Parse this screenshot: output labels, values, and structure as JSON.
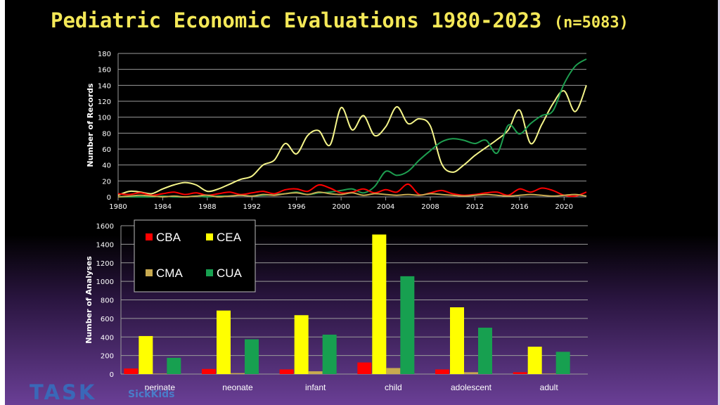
{
  "title": "Pediatric Economic Evaluations 1980-2023",
  "title_n": "(n=5083)",
  "logo_text": "TASK",
  "logo_sub": "SickKids",
  "colors": {
    "CBA": "#ff0000",
    "CEA": "#ffff00",
    "CMA": "#c8aa50",
    "CUA": "#17a050"
  },
  "chart_data": [
    {
      "type": "line",
      "xlabel": "",
      "ylabel": "Number of Records",
      "ylim": [
        0,
        180
      ],
      "yticks": [
        0,
        20,
        40,
        60,
        80,
        100,
        120,
        140,
        160,
        180
      ],
      "xlim": [
        1980,
        2022
      ],
      "xticks": [
        1980,
        1984,
        1988,
        1992,
        1996,
        2000,
        2004,
        2008,
        2012,
        2016,
        2020
      ],
      "grid": true,
      "series": [
        {
          "name": "CEA",
          "color": "#f5f58a",
          "x": [
            1980,
            1981,
            1982,
            1983,
            1984,
            1985,
            1986,
            1987,
            1988,
            1989,
            1990,
            1991,
            1992,
            1993,
            1994,
            1995,
            1996,
            1997,
            1998,
            1999,
            2000,
            2001,
            2002,
            2003,
            2004,
            2005,
            2006,
            2007,
            2008,
            2009,
            2010,
            2011,
            2012,
            2013,
            2014,
            2015,
            2016,
            2017,
            2018,
            2019,
            2020,
            2021,
            2022
          ],
          "y": [
            2,
            7,
            6,
            4,
            10,
            15,
            18,
            15,
            7,
            10,
            16,
            22,
            26,
            40,
            46,
            67,
            54,
            77,
            83,
            65,
            112,
            84,
            102,
            77,
            88,
            113,
            92,
            98,
            89,
            42,
            31,
            40,
            52,
            62,
            72,
            84,
            109,
            67,
            91,
            117,
            133,
            107,
            140
          ]
        },
        {
          "name": "CUA",
          "color": "#1e9e50",
          "x": [
            1980,
            1981,
            1982,
            1983,
            1984,
            1985,
            1986,
            1987,
            1988,
            1989,
            1990,
            1991,
            1992,
            1993,
            1994,
            1995,
            1996,
            1997,
            1998,
            1999,
            2000,
            2001,
            2002,
            2003,
            2004,
            2005,
            2006,
            2007,
            2008,
            2009,
            2010,
            2011,
            2012,
            2013,
            2014,
            2015,
            2016,
            2017,
            2018,
            2019,
            2020,
            2021,
            2022
          ],
          "y": [
            0,
            0,
            0,
            0,
            1,
            0,
            0,
            1,
            0,
            1,
            1,
            2,
            1,
            2,
            3,
            4,
            6,
            3,
            5,
            6,
            8,
            10,
            5,
            13,
            32,
            27,
            32,
            46,
            58,
            69,
            73,
            71,
            67,
            71,
            55,
            90,
            79,
            92,
            102,
            108,
            142,
            164,
            173
          ]
        },
        {
          "name": "CBA",
          "color": "#ff0000",
          "x": [
            1980,
            1981,
            1982,
            1983,
            1984,
            1985,
            1986,
            1987,
            1988,
            1989,
            1990,
            1991,
            1992,
            1993,
            1994,
            1995,
            1996,
            1997,
            1998,
            1999,
            2000,
            2001,
            2002,
            2003,
            2004,
            2005,
            2006,
            2007,
            2008,
            2009,
            2010,
            2011,
            2012,
            2013,
            2014,
            2015,
            2016,
            2017,
            2018,
            2019,
            2020,
            2021,
            2022
          ],
          "y": [
            4,
            3,
            5,
            2,
            4,
            6,
            3,
            5,
            2,
            4,
            6,
            3,
            5,
            7,
            4,
            9,
            10,
            7,
            15,
            11,
            5,
            6,
            10,
            5,
            9,
            6,
            16,
            3,
            5,
            8,
            4,
            2,
            3,
            5,
            6,
            2,
            10,
            6,
            11,
            8,
            2,
            1,
            6
          ]
        },
        {
          "name": "CMA",
          "color": "#c8aa50",
          "x": [
            1980,
            1981,
            1982,
            1983,
            1984,
            1985,
            1986,
            1987,
            1988,
            1989,
            1990,
            1991,
            1992,
            1993,
            1994,
            1995,
            1996,
            1997,
            1998,
            1999,
            2000,
            2001,
            2002,
            2003,
            2004,
            2005,
            2006,
            2007,
            2008,
            2009,
            2010,
            2011,
            2012,
            2013,
            2014,
            2015,
            2016,
            2017,
            2018,
            2019,
            2020,
            2021,
            2022
          ],
          "y": [
            0,
            1,
            2,
            1,
            0,
            1,
            0,
            1,
            2,
            0,
            1,
            2,
            1,
            3,
            2,
            4,
            5,
            3,
            6,
            4,
            3,
            5,
            2,
            4,
            3,
            2,
            3,
            2,
            4,
            3,
            2,
            1,
            2,
            3,
            2,
            1,
            2,
            3,
            2,
            1,
            2,
            3,
            1
          ]
        }
      ]
    },
    {
      "type": "bar",
      "xlabel": "",
      "ylabel": "Number of Analyses",
      "ylim": [
        0,
        1600
      ],
      "yticks": [
        0,
        200,
        400,
        600,
        800,
        1000,
        1200,
        1400,
        1600
      ],
      "grid": true,
      "legend_position": "top-left",
      "categories": [
        "perinate",
        "neonate",
        "infant",
        "child",
        "adolescent",
        "adult"
      ],
      "series": [
        {
          "name": "CBA",
          "color": "#ff0000",
          "values": [
            60,
            55,
            50,
            125,
            50,
            20
          ]
        },
        {
          "name": "CEA",
          "color": "#ffff00",
          "values": [
            410,
            685,
            635,
            1505,
            720,
            295
          ]
        },
        {
          "name": "CMA",
          "color": "#c8aa50",
          "values": [
            5,
            10,
            30,
            65,
            20,
            5
          ]
        },
        {
          "name": "CUA",
          "color": "#17a050",
          "values": [
            175,
            375,
            425,
            1055,
            500,
            240
          ]
        }
      ],
      "legend": [
        {
          "label": "CBA",
          "color": "#ff0000"
        },
        {
          "label": "CEA",
          "color": "#ffff00"
        },
        {
          "label": "CMA",
          "color": "#c8aa50"
        },
        {
          "label": "CUA",
          "color": "#17a050"
        }
      ]
    }
  ]
}
